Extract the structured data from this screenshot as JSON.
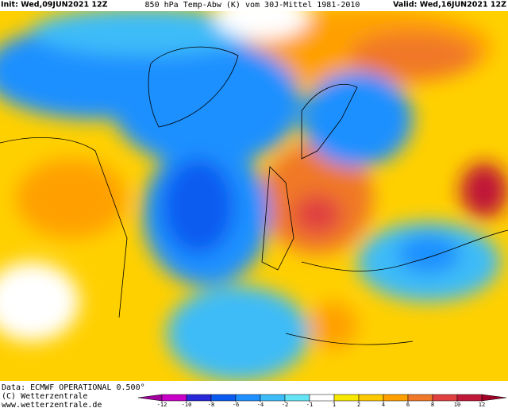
{
  "header": {
    "init": "Init: Wed,09JUN2021 12Z",
    "title": "850 hPa Temp-Abw (K) vom 30J-Mittel 1981-2010",
    "valid": "Valid: Wed,16JUN2021 12Z"
  },
  "footer": {
    "lines": [
      "Data: ECMWF OPERATIONAL 0.500°",
      "(C) Wetterzentrale",
      "www.wetterzentrale.de"
    ]
  },
  "legend": {
    "ticks": [
      -12,
      -10,
      -8,
      -6,
      -4,
      -2,
      -1,
      1,
      2,
      4,
      6,
      8,
      10,
      12
    ],
    "colors": [
      "#a0009c",
      "#c800c8",
      "#2828d8",
      "#0a5cf0",
      "#1e90ff",
      "#3cbcf8",
      "#64e4f4",
      "#ffffff",
      "#f8e800",
      "#ffc800",
      "#ffa000",
      "#f07828",
      "#e04040",
      "#c01838",
      "#a00028"
    ]
  }
}
